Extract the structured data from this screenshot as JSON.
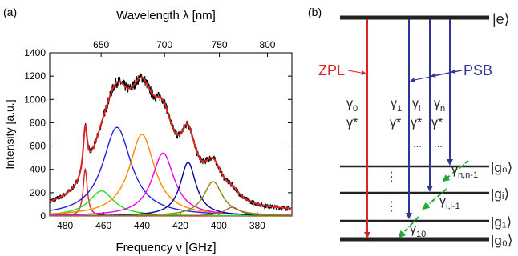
{
  "panel_a": {
    "label": "(a)",
    "top_axis_title": "Wavelength λ [nm]",
    "bottom_axis_title": "Frequency ν [GHz]",
    "y_axis_title": "Intensity [a.u.]",
    "x_ticks": [
      "480",
      "460",
      "440",
      "420",
      "400",
      "380"
    ],
    "wavelength_ticks": [
      "650",
      "700",
      "750",
      "800"
    ],
    "y_ticks": [
      "0",
      "200",
      "400",
      "600",
      "800",
      "1000",
      "1200",
      "1400"
    ]
  },
  "chart_data": {
    "type": "line",
    "x_axis": {
      "label": "Frequency ν [GHz]",
      "range": [
        488,
        362
      ],
      "ticks": [
        480,
        460,
        440,
        420,
        400,
        380
      ]
    },
    "top_axis": {
      "label": "Wavelength λ [nm]",
      "ticks": [
        650,
        700,
        750,
        800
      ]
    },
    "y_axis": {
      "label": "Intensity [a.u.]",
      "range": [
        0,
        1400
      ],
      "ticks": [
        0,
        200,
        400,
        600,
        800,
        1000,
        1200,
        1400
      ]
    },
    "grid": false,
    "components": [
      {
        "color": "#dd2222",
        "center": 469.5,
        "amplitude": 400,
        "width": 1.3
      },
      {
        "color": "#22dd22",
        "center": 461,
        "amplitude": 215,
        "width": 8
      },
      {
        "color": "#2222dd",
        "center": 453,
        "amplitude": 760,
        "width": 9
      },
      {
        "color": "#ff8800",
        "center": 440,
        "amplitude": 700,
        "width": 8
      },
      {
        "color": "#ee00ee",
        "center": 429,
        "amplitude": 540,
        "width": 7
      },
      {
        "color": "#000099",
        "center": 416,
        "amplitude": 460,
        "width": 5
      },
      {
        "color": "#888800",
        "center": 403,
        "amplitude": 295,
        "width": 6
      },
      {
        "color": "#996633",
        "center": 393,
        "amplitude": 75,
        "width": 5
      }
    ],
    "fit": {
      "color": "#dd2222"
    },
    "data": {
      "color": "#000000"
    }
  },
  "panel_b": {
    "label": "(b)",
    "level_e": "|e⟩",
    "level_gn": "|gₙ⟩",
    "level_gi": "|gᵢ⟩",
    "level_g1": "|g₁⟩",
    "level_g0": "|g₀⟩",
    "zpl_label": "ZPL",
    "psb_label": "PSB",
    "gamma0": "γ",
    "gamma0_sub": "0",
    "gamma1": "γ",
    "gamma1_sub": "1",
    "gammai": "γ",
    "gammai_sub": "i",
    "gamman": "γ",
    "gamman_sub": "n",
    "gamma_star": "γ*",
    "dots": "...",
    "decay_n": "γ",
    "decay_n_sub": "n,n-1",
    "decay_i": "γ",
    "decay_i_sub": "i,i-1",
    "decay_1": "γ",
    "decay_1_sub": "10",
    "vdots": "⋮",
    "colors": {
      "zpl": "#dd2222",
      "psb": "#333399",
      "decay": "#22aa33"
    }
  }
}
